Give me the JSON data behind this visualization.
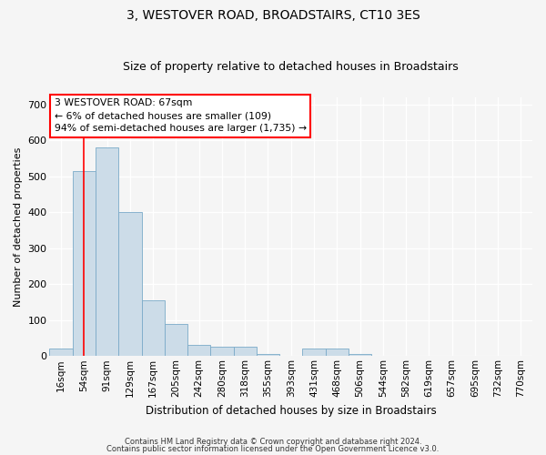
{
  "title": "3, WESTOVER ROAD, BROADSTAIRS, CT10 3ES",
  "subtitle": "Size of property relative to detached houses in Broadstairs",
  "xlabel": "Distribution of detached houses by size in Broadstairs",
  "ylabel": "Number of detached properties",
  "bar_color": "#ccdce8",
  "bar_edgecolor": "#7aaac8",
  "categories": [
    "16sqm",
    "54sqm",
    "91sqm",
    "129sqm",
    "167sqm",
    "205sqm",
    "242sqm",
    "280sqm",
    "318sqm",
    "355sqm",
    "393sqm",
    "431sqm",
    "468sqm",
    "506sqm",
    "544sqm",
    "582sqm",
    "619sqm",
    "657sqm",
    "695sqm",
    "732sqm",
    "770sqm"
  ],
  "values": [
    20,
    515,
    580,
    400,
    155,
    90,
    30,
    25,
    25,
    5,
    0,
    20,
    20,
    5,
    0,
    0,
    0,
    0,
    0,
    0,
    0
  ],
  "ylim": [
    0,
    720
  ],
  "yticks": [
    0,
    100,
    200,
    300,
    400,
    500,
    600,
    700
  ],
  "property_line_x": 1.0,
  "annotation_text": "3 WESTOVER ROAD: 67sqm\n← 6% of detached houses are smaller (109)\n94% of semi-detached houses are larger (1,735) →",
  "footer_line1": "Contains HM Land Registry data © Crown copyright and database right 2024.",
  "footer_line2": "Contains public sector information licensed under the Open Government Licence v3.0.",
  "background_color": "#f5f5f5",
  "plot_background": "#f5f5f5",
  "grid_color": "#ffffff"
}
